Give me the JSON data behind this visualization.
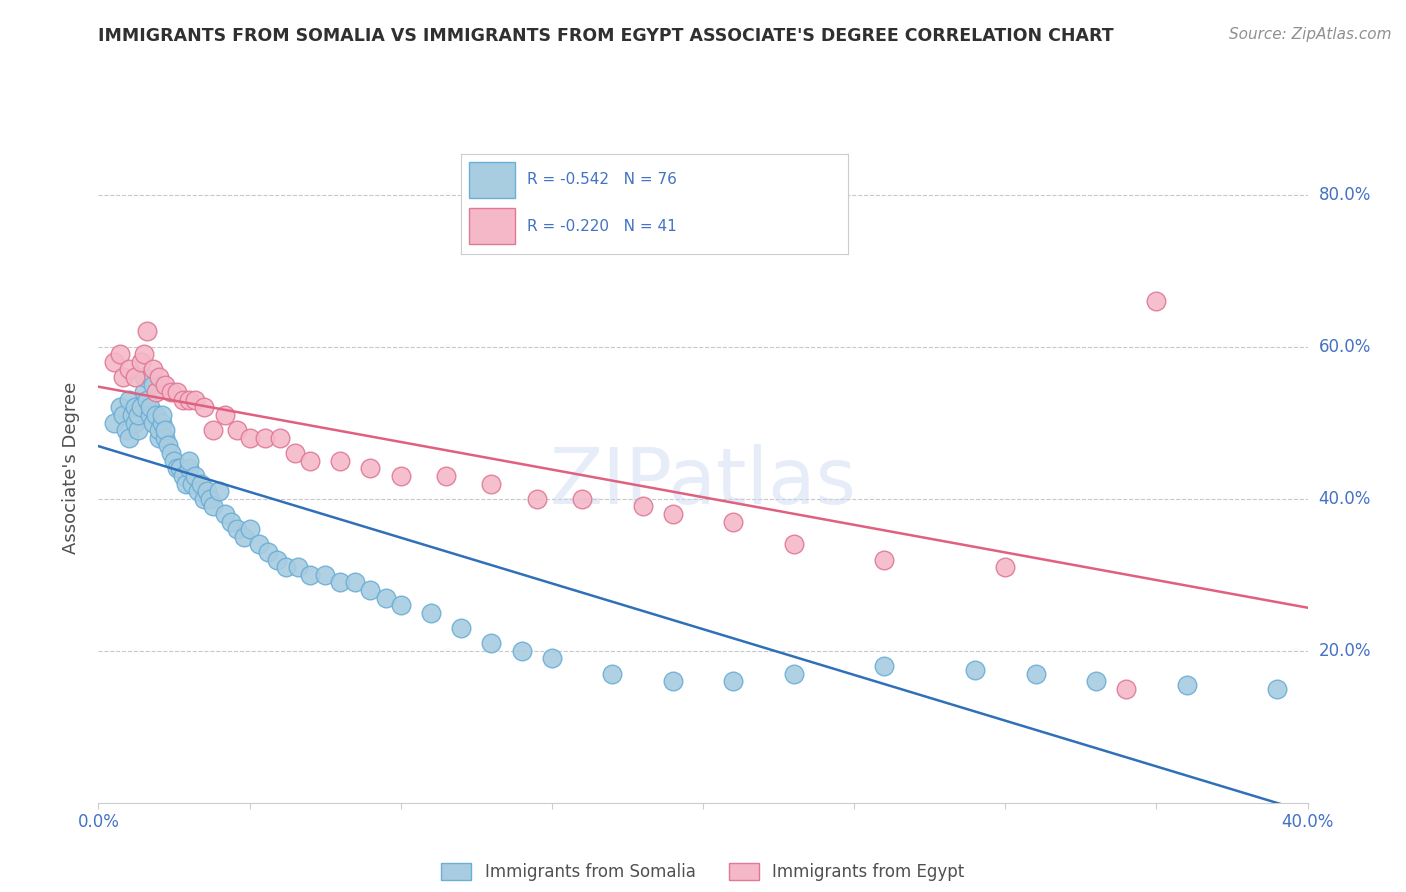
{
  "title": "IMMIGRANTS FROM SOMALIA VS IMMIGRANTS FROM EGYPT ASSOCIATE'S DEGREE CORRELATION CHART",
  "source": "Source: ZipAtlas.com",
  "ylabel": "Associate's Degree",
  "xlim": [
    0.0,
    0.4
  ],
  "ylim": [
    0.0,
    0.88
  ],
  "yticks": [
    0.2,
    0.4,
    0.6,
    0.8
  ],
  "ytick_labels": [
    "20.0%",
    "40.0%",
    "60.0%",
    "80.0%"
  ],
  "xticks": [
    0.0,
    0.05,
    0.1,
    0.15,
    0.2,
    0.25,
    0.3,
    0.35,
    0.4
  ],
  "xtick_labels": [
    "0.0%",
    "",
    "",
    "",
    "",
    "",
    "",
    "",
    "40.0%"
  ],
  "somalia_color": "#a8cce0",
  "egypt_color": "#f4b8c8",
  "somalia_edge": "#6baed6",
  "egypt_edge": "#e07898",
  "trendline_somalia_color": "#3070b8",
  "trendline_egypt_color": "#e06080",
  "legend_R_somalia": "R = -0.542",
  "legend_N_somalia": "N = 76",
  "legend_R_egypt": "R = -0.220",
  "legend_N_egypt": "N = 41",
  "background_color": "#ffffff",
  "grid_color": "#c8c8c8",
  "title_color": "#303030",
  "source_color": "#909090",
  "axis_label_color": "#505050",
  "tick_color": "#4472c4",
  "watermark": "ZIPatlas",
  "somalia_x": [
    0.005,
    0.007,
    0.008,
    0.009,
    0.01,
    0.01,
    0.011,
    0.012,
    0.012,
    0.013,
    0.013,
    0.014,
    0.015,
    0.015,
    0.016,
    0.017,
    0.017,
    0.018,
    0.018,
    0.019,
    0.02,
    0.02,
    0.021,
    0.021,
    0.022,
    0.022,
    0.023,
    0.024,
    0.025,
    0.026,
    0.027,
    0.028,
    0.029,
    0.03,
    0.03,
    0.031,
    0.032,
    0.033,
    0.034,
    0.035,
    0.036,
    0.037,
    0.038,
    0.04,
    0.042,
    0.044,
    0.046,
    0.048,
    0.05,
    0.053,
    0.056,
    0.059,
    0.062,
    0.066,
    0.07,
    0.075,
    0.08,
    0.085,
    0.09,
    0.095,
    0.1,
    0.11,
    0.12,
    0.13,
    0.14,
    0.15,
    0.17,
    0.19,
    0.21,
    0.23,
    0.26,
    0.29,
    0.31,
    0.33,
    0.36,
    0.39
  ],
  "somalia_y": [
    0.5,
    0.52,
    0.51,
    0.49,
    0.53,
    0.48,
    0.51,
    0.5,
    0.52,
    0.49,
    0.51,
    0.52,
    0.54,
    0.56,
    0.53,
    0.51,
    0.52,
    0.55,
    0.5,
    0.51,
    0.48,
    0.49,
    0.5,
    0.51,
    0.48,
    0.49,
    0.47,
    0.46,
    0.45,
    0.44,
    0.44,
    0.43,
    0.42,
    0.44,
    0.45,
    0.42,
    0.43,
    0.41,
    0.42,
    0.4,
    0.41,
    0.4,
    0.39,
    0.41,
    0.38,
    0.37,
    0.36,
    0.35,
    0.36,
    0.34,
    0.33,
    0.32,
    0.31,
    0.31,
    0.3,
    0.3,
    0.29,
    0.29,
    0.28,
    0.27,
    0.26,
    0.25,
    0.23,
    0.21,
    0.2,
    0.19,
    0.17,
    0.16,
    0.16,
    0.17,
    0.18,
    0.175,
    0.17,
    0.16,
    0.155,
    0.15
  ],
  "egypt_x": [
    0.005,
    0.007,
    0.008,
    0.01,
    0.012,
    0.014,
    0.015,
    0.016,
    0.018,
    0.019,
    0.02,
    0.022,
    0.024,
    0.026,
    0.028,
    0.03,
    0.032,
    0.035,
    0.038,
    0.042,
    0.046,
    0.05,
    0.055,
    0.06,
    0.065,
    0.07,
    0.08,
    0.09,
    0.1,
    0.115,
    0.13,
    0.145,
    0.16,
    0.18,
    0.19,
    0.21,
    0.23,
    0.26,
    0.3,
    0.34,
    0.35
  ],
  "egypt_y": [
    0.58,
    0.59,
    0.56,
    0.57,
    0.56,
    0.58,
    0.59,
    0.62,
    0.57,
    0.54,
    0.56,
    0.55,
    0.54,
    0.54,
    0.53,
    0.53,
    0.53,
    0.52,
    0.49,
    0.51,
    0.49,
    0.48,
    0.48,
    0.48,
    0.46,
    0.45,
    0.45,
    0.44,
    0.43,
    0.43,
    0.42,
    0.4,
    0.4,
    0.39,
    0.38,
    0.37,
    0.34,
    0.32,
    0.31,
    0.15,
    0.66
  ]
}
